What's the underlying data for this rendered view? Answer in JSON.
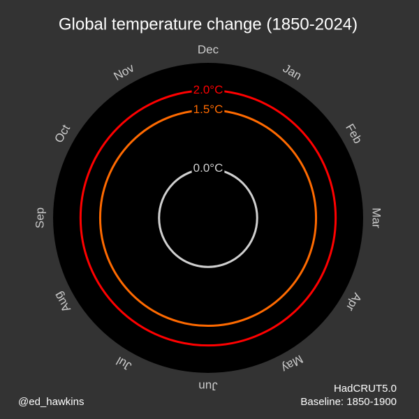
{
  "chart_data": {
    "type": "polar",
    "title": "Global temperature change (1850-2024)",
    "categories": [
      "Jan",
      "Feb",
      "Mar",
      "Apr",
      "May",
      "Jun",
      "Jul",
      "Aug",
      "Sep",
      "Oct",
      "Nov",
      "Dec"
    ],
    "rlim": [
      -1.25,
      2.7
    ],
    "rticks": [
      {
        "value": 0,
        "label": "0.0°C"
      },
      {
        "value": 1.5,
        "label": "1.5°C"
      },
      {
        "value": 2,
        "label": "2.0°C"
      }
    ],
    "rtick_colors": [
      "#d0d0d0",
      "#ff6a00",
      "#ff0000"
    ],
    "credit": "@ed_hawkins",
    "source": "HadCRUT5.0",
    "baseline": "Baseline: 1850-1900"
  }
}
